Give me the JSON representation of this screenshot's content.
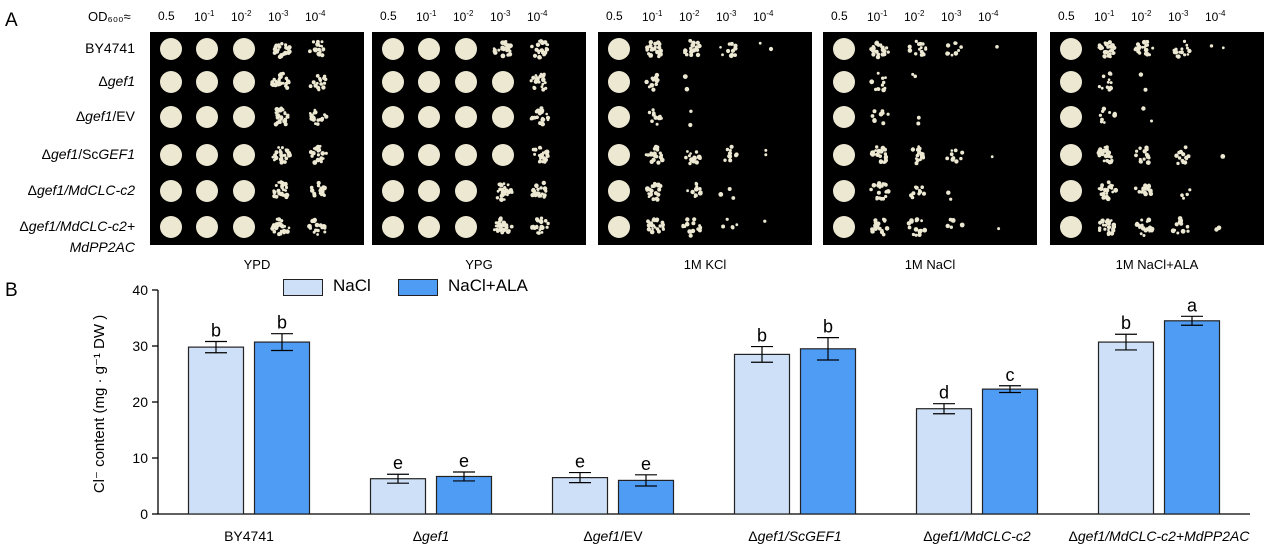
{
  "panel_a": {
    "letter": "A",
    "od_label": "OD₆₀₀≈",
    "dilutions": [
      {
        "base": "0.5",
        "exp": ""
      },
      {
        "base": "10",
        "exp": "-1"
      },
      {
        "base": "10",
        "exp": "-2"
      },
      {
        "base": "10",
        "exp": "-3"
      },
      {
        "base": "10",
        "exp": "-4"
      }
    ],
    "strains": [
      {
        "pre": "BY4741",
        "it": "",
        "post": "",
        "it2": ""
      },
      {
        "pre": "Δ",
        "it": "gef1",
        "post": "",
        "it2": ""
      },
      {
        "pre": "Δ",
        "it": "gef1",
        "post": "/EV",
        "it2": ""
      },
      {
        "pre": "Δ",
        "it": "gef1",
        "post": "/Sc",
        "it2": "GEF1"
      },
      {
        "pre": "Δ",
        "it": "gef1/MdCLC-c2",
        "post": "",
        "it2": ""
      },
      {
        "pre": "Δ",
        "it": "gef1/MdCLC-c2+",
        "post": "",
        "it2": ""
      }
    ],
    "strain_line2": "MdPP2AC",
    "plates": [
      "YPD",
      "YPG",
      "1M KCl",
      "1M NaCl",
      "1M NaCl+ALA"
    ],
    "colony_color": "#ece8d2"
  },
  "panel_b": {
    "letter": "B",
    "legend": [
      "NaCl",
      "NaCl+ALA"
    ],
    "colors": {
      "nacl": "#cde0f7",
      "nacl_ala": "#4f9cf5",
      "edge": "#222222"
    }
  },
  "chart_data": {
    "type": "bar",
    "categories": [
      "BY4741",
      "Δgef1",
      "Δgef1/EV",
      "Δgef1/ScGEF1",
      "Δgef1/MdCLC-c2",
      "Δgef1/MdCLC-c2+MdPP2AC"
    ],
    "category_labels": [
      {
        "pre": "BY4741",
        "it": "",
        "post": ""
      },
      {
        "pre": "Δ",
        "it": "gef1",
        "post": ""
      },
      {
        "pre": "Δ",
        "it": "gef1",
        "post": "/EV"
      },
      {
        "pre": "Δ",
        "it": "gef1/ScGEF1",
        "post": ""
      },
      {
        "pre": "Δ",
        "it": "gef1/MdCLC-c2",
        "post": ""
      },
      {
        "pre": "Δ",
        "it": "gef1/MdCLC-c2+MdPP2AC",
        "post": ""
      }
    ],
    "series": [
      {
        "name": "NaCl",
        "values": [
          29.8,
          6.3,
          6.5,
          28.5,
          18.8,
          30.7
        ],
        "errors": [
          1.0,
          0.8,
          0.9,
          1.4,
          0.9,
          1.4
        ],
        "letters": [
          "b",
          "e",
          "e",
          "b",
          "d",
          "b"
        ]
      },
      {
        "name": "NaCl+ALA",
        "values": [
          30.7,
          6.7,
          6.0,
          29.5,
          22.3,
          34.5
        ],
        "errors": [
          1.5,
          0.8,
          1.0,
          2.0,
          0.6,
          0.8
        ],
        "letters": [
          "b",
          "e",
          "e",
          "b",
          "c",
          "a"
        ]
      }
    ],
    "ylabel": "Cl⁻ content (mg · g⁻¹ DW )",
    "ylim": [
      0,
      40
    ],
    "yticks": [
      0,
      10,
      20,
      30,
      40
    ]
  }
}
